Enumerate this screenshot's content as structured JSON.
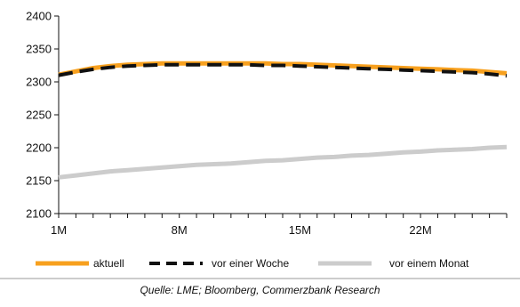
{
  "chart_data": {
    "type": "line",
    "title": "",
    "xlabel": "",
    "ylabel": "",
    "x": [
      1,
      2,
      3,
      4,
      5,
      6,
      7,
      8,
      9,
      10,
      11,
      12,
      13,
      14,
      15,
      16,
      17,
      18,
      19,
      20,
      21,
      22,
      23,
      24,
      25,
      26,
      27
    ],
    "xticks": [
      {
        "x": 1,
        "label": "1M"
      },
      {
        "x": 8,
        "label": "8M"
      },
      {
        "x": 15,
        "label": "15M"
      },
      {
        "x": 22,
        "label": "22M"
      }
    ],
    "ylim": [
      2100,
      2400
    ],
    "yticks": [
      2100,
      2150,
      2200,
      2250,
      2300,
      2350,
      2400
    ],
    "grid": false,
    "legend_position": "bottom",
    "series": [
      {
        "name": "aktuell",
        "color": "#F7A01E",
        "style": "solid",
        "values": [
          2311,
          2316,
          2321,
          2324,
          2326,
          2327,
          2328,
          2328,
          2328,
          2328,
          2328,
          2328,
          2328,
          2327,
          2327,
          2326,
          2325,
          2324,
          2323,
          2322,
          2321,
          2320,
          2319,
          2318,
          2317,
          2315,
          2313
        ]
      },
      {
        "name": "vor einer Woche",
        "color": "#111111",
        "style": "dashed",
        "values": [
          2310,
          2315,
          2319,
          2322,
          2324,
          2325,
          2326,
          2326,
          2326,
          2326,
          2326,
          2326,
          2325,
          2325,
          2324,
          2323,
          2322,
          2321,
          2320,
          2319,
          2318,
          2317,
          2316,
          2315,
          2314,
          2312,
          2309
        ]
      },
      {
        "name": "vor einem Monat",
        "color": "#CCCCCC",
        "style": "solid",
        "values": [
          2155,
          2158,
          2161,
          2164,
          2166,
          2168,
          2170,
          2172,
          2174,
          2175,
          2176,
          2178,
          2180,
          2181,
          2183,
          2185,
          2186,
          2188,
          2189,
          2191,
          2193,
          2194,
          2196,
          2197,
          2198,
          2200,
          2201
        ]
      }
    ]
  },
  "source_text": "Quelle: LME; Bloomberg, Commerzbank Research"
}
